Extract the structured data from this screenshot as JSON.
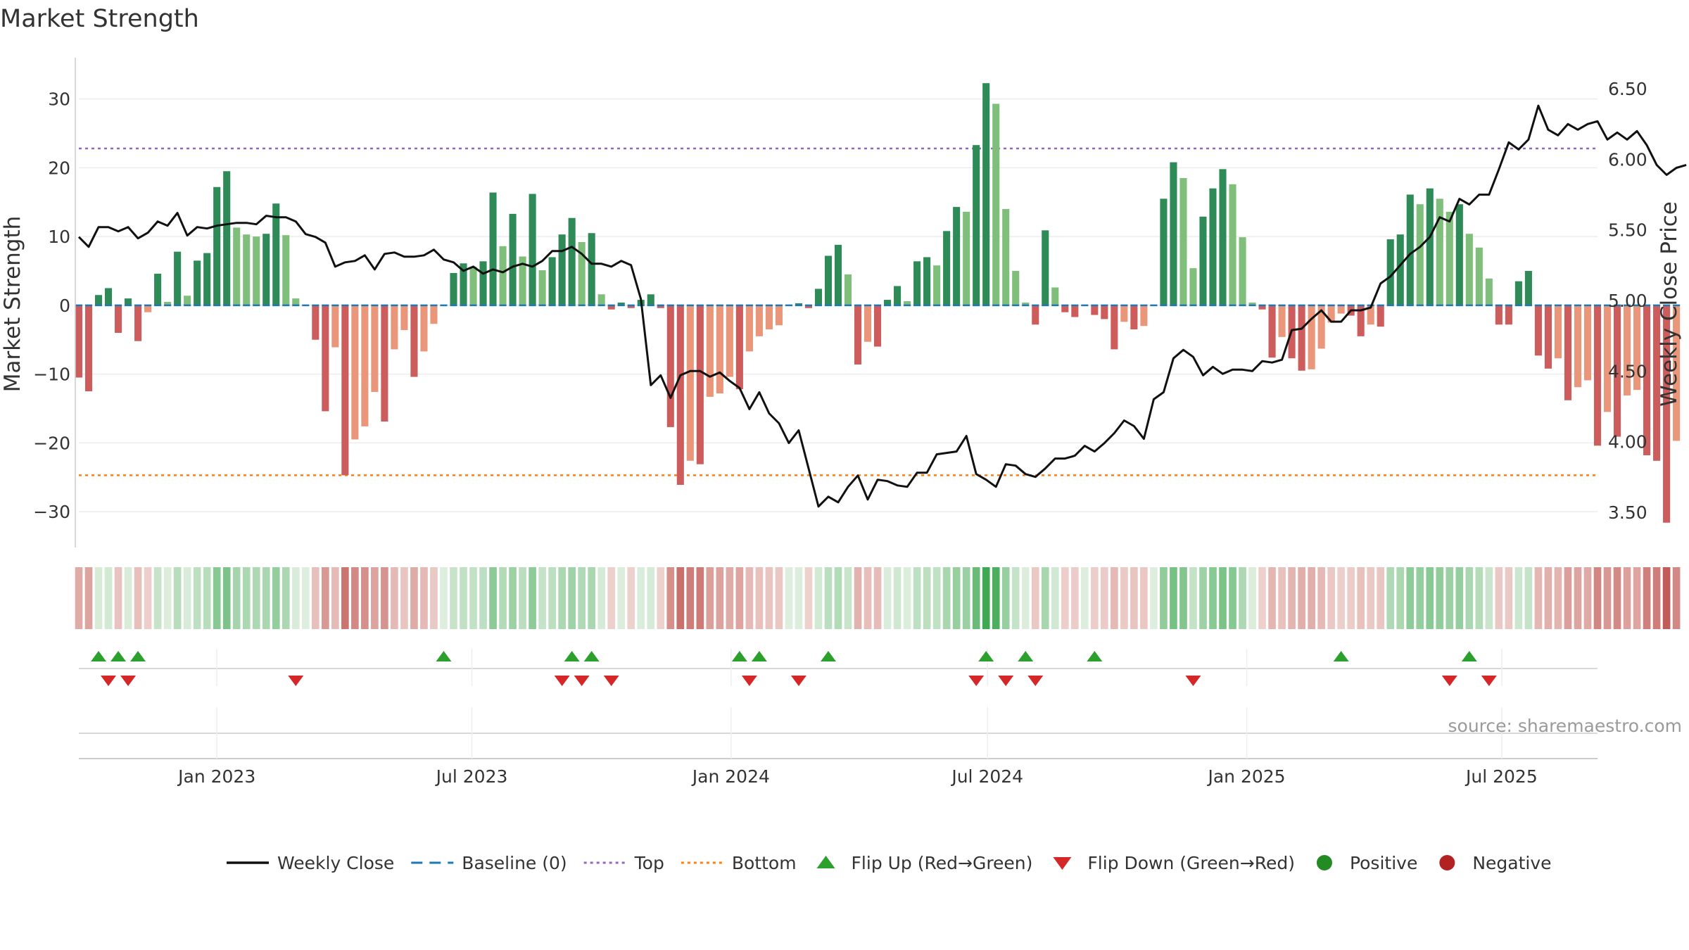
{
  "chart_data": {
    "type": "bar",
    "title": "Market Strength",
    "ylabel_left": "Market Strength",
    "ylabel_right": "Weekly Close Price",
    "source_note": "source: sharemaestro.com",
    "ylim_left": [
      -35,
      36
    ],
    "ylim_right": [
      3.26,
      6.72
    ],
    "yticks_left": [
      30,
      20,
      10,
      0,
      -10,
      -20,
      -30
    ],
    "ytick_labels_left": [
      "30",
      "20",
      "10",
      "0",
      "−10",
      "−20",
      "−30"
    ],
    "yticks_right": [
      6.5,
      6.0,
      5.5,
      5.0,
      4.5,
      4.0,
      3.5
    ],
    "ytick_labels_right": [
      "6.50",
      "6.00",
      "5.50",
      "5.00",
      "4.50",
      "4.00",
      "3.50"
    ],
    "x_start": "2022-09-25",
    "x_end": "2025-09-07",
    "x_ticks": [
      "2023-01-01",
      "2023-07-01",
      "2024-01-01",
      "2024-07-01",
      "2025-01-01",
      "2025-07-01"
    ],
    "x_tick_labels": [
      "Jan 2023",
      "Jul 2023",
      "Jan 2024",
      "Jul 2024",
      "Jan 2025",
      "Jul 2025"
    ],
    "top_threshold": 22.8,
    "bottom_threshold": -24.7,
    "baseline": 0,
    "strength_values": [
      -10.5,
      -12.5,
      1.5,
      2.5,
      -4,
      1,
      -5.2,
      -1,
      4.6,
      0.5,
      7.8,
      1.4,
      6.5,
      7.6,
      17.2,
      19.5,
      11.3,
      10.3,
      10,
      10.4,
      14.8,
      10.2,
      1,
      0,
      -5,
      -15.4,
      -6.1,
      -24.7,
      -19.5,
      -17.6,
      -12.6,
      -16.9,
      -6.4,
      -3.6,
      -10.4,
      -6.7,
      -2.7,
      0,
      4.7,
      6.1,
      5.6,
      6.4,
      16.4,
      8.6,
      13.3,
      7.1,
      16.2,
      5.1,
      7,
      10.3,
      12.7,
      9.2,
      10.5,
      1.6,
      -0.6,
      0.4,
      -0.4,
      0.8,
      1.6,
      -0.4,
      -17.7,
      -26.1,
      -22.6,
      -23.1,
      -13.3,
      -12.8,
      -10.4,
      -12.2,
      -6.7,
      -4.5,
      -3.5,
      -2.9,
      0,
      0.3,
      -0.4,
      2.4,
      7.2,
      8.8,
      4.5,
      -8.6,
      -5.3,
      -6,
      0.8,
      2.8,
      0.6,
      6.4,
      7,
      5.8,
      10.8,
      14.3,
      13.6,
      23.3,
      32.3,
      29.3,
      14,
      5,
      0.4,
      -2.8,
      10.9,
      2.6,
      -1,
      -1.7,
      0,
      -1.4,
      -2,
      -6.4,
      -2.4,
      -3.5,
      -3,
      0,
      15.5,
      20.8,
      18.5,
      5.4,
      12.9,
      17,
      19.8,
      17.6,
      9.9,
      0.4,
      -0.6,
      -7.6,
      -4.6,
      -7.7,
      -9.5,
      -9.3,
      -6.3,
      -2.5,
      -1.2,
      -1.5,
      -4.5,
      -2.8,
      -3.1,
      9.6,
      10.3,
      16.1,
      14.7,
      17,
      15.5,
      13.6,
      14.7,
      10.4,
      8.4,
      3.9,
      -2.8,
      -2.8,
      3.5,
      5,
      -7.3,
      -9.2,
      -7.7,
      -13.8,
      -11.9,
      -10.9,
      -20.4,
      -15.5,
      -19.1,
      -13.1,
      -12.3,
      -21.8,
      -22.6,
      -31.6,
      -19.7
    ],
    "weekly_close": [
      5.45,
      5.38,
      5.52,
      5.52,
      5.49,
      5.52,
      5.44,
      5.48,
      5.56,
      5.53,
      5.62,
      5.46,
      5.52,
      5.51,
      5.53,
      5.54,
      5.55,
      5.55,
      5.54,
      5.6,
      5.59,
      5.59,
      5.56,
      5.47,
      5.45,
      5.41,
      5.24,
      5.27,
      5.28,
      5.32,
      5.22,
      5.33,
      5.34,
      5.31,
      5.31,
      5.32,
      5.36,
      5.29,
      5.27,
      5.21,
      5.24,
      5.19,
      5.22,
      5.2,
      5.24,
      5.26,
      5.24,
      5.28,
      5.35,
      5.35,
      5.38,
      5.33,
      5.26,
      5.26,
      5.24,
      5.28,
      5.25,
      5.01,
      4.4,
      4.47,
      4.31,
      4.47,
      4.5,
      4.5,
      4.46,
      4.49,
      4.43,
      4.38,
      4.23,
      4.35,
      4.2,
      4.13,
      3.99,
      4.08,
      3.81,
      3.54,
      3.61,
      3.57,
      3.68,
      3.76,
      3.59,
      3.73,
      3.72,
      3.69,
      3.68,
      3.78,
      3.78,
      3.91,
      3.92,
      3.93,
      4.04,
      3.77,
      3.73,
      3.68,
      3.84,
      3.83,
      3.77,
      3.75,
      3.81,
      3.88,
      3.88,
      3.9,
      3.97,
      3.93,
      3.99,
      4.06,
      4.15,
      4.11,
      4.02,
      4.3,
      4.35,
      4.59,
      4.65,
      4.6,
      4.47,
      4.53,
      4.48,
      4.51,
      4.51,
      4.5,
      4.57,
      4.56,
      4.58,
      4.79,
      4.8,
      4.87,
      4.93,
      4.85,
      4.85,
      4.93,
      4.93,
      4.95,
      5.12,
      5.17,
      5.25,
      5.33,
      5.38,
      5.45,
      5.59,
      5.56,
      5.72,
      5.68,
      5.75,
      5.75,
      5.93,
      6.12,
      6.07,
      6.14,
      6.38,
      6.21,
      6.17,
      6.25,
      6.21,
      6.25,
      6.27,
      6.14,
      6.19,
      6.14,
      6.2,
      6.1,
      5.96,
      5.89,
      5.94,
      5.96
    ],
    "flip_up_markers": [
      "2022-10-09",
      "2022-10-23",
      "2022-11-06",
      "2023-06-11",
      "2023-09-10",
      "2023-09-24",
      "2024-01-07",
      "2024-01-21",
      "2024-03-10",
      "2024-06-30",
      "2024-07-28",
      "2024-09-15",
      "2025-03-09",
      "2025-06-08"
    ],
    "flip_down_markers": [
      "2022-10-16",
      "2022-10-30",
      "2023-02-26",
      "2023-09-03",
      "2023-09-17",
      "2023-10-08",
      "2024-01-14",
      "2024-02-18",
      "2024-06-23",
      "2024-07-14",
      "2024-08-04",
      "2024-11-24",
      "2025-05-25",
      "2025-06-22"
    ],
    "legend_position": "bottom",
    "grid": true,
    "colors": {
      "positive_strong": "#2e8b57",
      "positive_weak": "#7fbf7b",
      "negative_strong": "#cd5c5c",
      "negative_weak": "#e9967a",
      "line": "#111111",
      "baseline": "#1f77b4",
      "top": "#9467bd",
      "bottom": "#ff7f0e",
      "flip_up": "#2ca02c",
      "flip_down": "#d62728",
      "legend_positive": "#228b22",
      "legend_negative": "#b22222"
    },
    "legend": [
      {
        "label": "Weekly Close",
        "kind": "line-solid",
        "color": "#111111"
      },
      {
        "label": "Baseline (0)",
        "kind": "line-dash",
        "color": "#1f77b4"
      },
      {
        "label": "Top",
        "kind": "line-dot",
        "color": "#9467bd"
      },
      {
        "label": "Bottom",
        "kind": "line-dot",
        "color": "#ff7f0e"
      },
      {
        "label": "Flip Up (Red→Green)",
        "kind": "tri-up",
        "color": "#2ca02c"
      },
      {
        "label": "Flip Down (Green→Red)",
        "kind": "tri-down",
        "color": "#d62728"
      },
      {
        "label": "Positive",
        "kind": "dot",
        "color": "#228b22"
      },
      {
        "label": "Negative",
        "kind": "dot",
        "color": "#b22222"
      }
    ]
  }
}
